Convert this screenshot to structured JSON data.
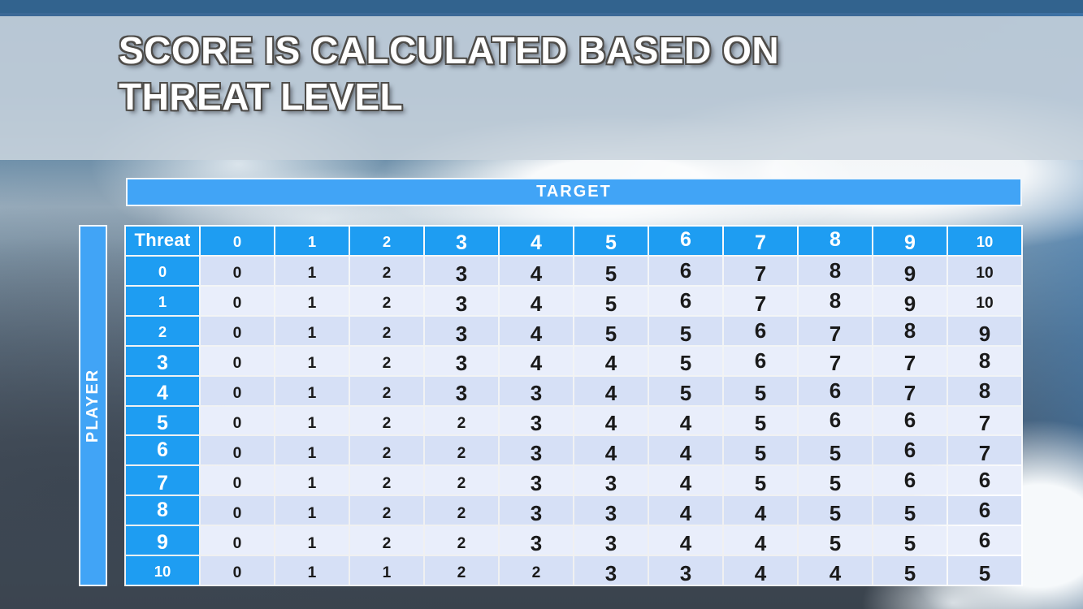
{
  "slide": {
    "title_line1": "SCORE IS CALCULATED BASED ON",
    "title_line2": "THREAT LEVEL"
  },
  "axes": {
    "target_label": "TARGET",
    "player_label": "PLAYER"
  },
  "table": {
    "corner_label": "Threat",
    "col_headers": [
      "0",
      "1",
      "2",
      "3",
      "4",
      "5",
      "6",
      "7",
      "8",
      "9",
      "10"
    ],
    "rows": [
      {
        "label": "0",
        "values": [
          0,
          1,
          2,
          3,
          4,
          5,
          6,
          7,
          8,
          9,
          10
        ]
      },
      {
        "label": "1",
        "values": [
          0,
          1,
          2,
          3,
          4,
          5,
          6,
          7,
          8,
          9,
          10
        ]
      },
      {
        "label": "2",
        "values": [
          0,
          1,
          2,
          3,
          4,
          5,
          5,
          6,
          7,
          8,
          9
        ]
      },
      {
        "label": "3",
        "values": [
          0,
          1,
          2,
          3,
          4,
          4,
          5,
          6,
          7,
          7,
          8
        ]
      },
      {
        "label": "4",
        "values": [
          0,
          1,
          2,
          3,
          3,
          4,
          5,
          5,
          6,
          7,
          8
        ]
      },
      {
        "label": "5",
        "values": [
          0,
          1,
          2,
          2,
          3,
          4,
          4,
          5,
          6,
          6,
          7
        ]
      },
      {
        "label": "6",
        "values": [
          0,
          1,
          2,
          2,
          3,
          4,
          4,
          5,
          5,
          6,
          7
        ]
      },
      {
        "label": "7",
        "values": [
          0,
          1,
          2,
          2,
          3,
          3,
          4,
          5,
          5,
          6,
          6
        ]
      },
      {
        "label": "8",
        "values": [
          0,
          1,
          2,
          2,
          3,
          3,
          4,
          4,
          5,
          5,
          6
        ]
      },
      {
        "label": "9",
        "values": [
          0,
          1,
          2,
          2,
          3,
          3,
          4,
          4,
          5,
          5,
          6
        ]
      },
      {
        "label": "10",
        "values": [
          0,
          1,
          1,
          2,
          2,
          3,
          3,
          4,
          4,
          5,
          5
        ]
      }
    ]
  },
  "colors": {
    "top_bar": "#32638E",
    "title_band": "#CAD4DD",
    "accent_blue": "#41A4F6",
    "header_blue": "#1E9DF2",
    "row_stripe_dark": "#D6E0F6",
    "row_stripe_light": "#E9EEFB",
    "cell_text": "#1A1A1A"
  }
}
